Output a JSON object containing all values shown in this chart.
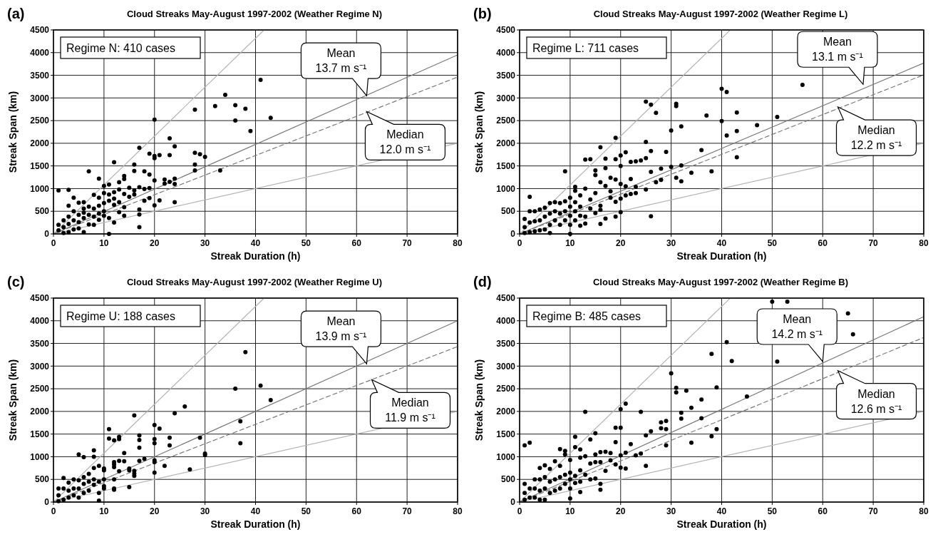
{
  "chart_data": [
    {
      "type": "scatter",
      "title": "Cloud Streaks May-August 1997-2002 (Weather Regime N)",
      "xlabel": "Streak Duration (h)",
      "ylabel": "Streak Span (km)",
      "xlim": [
        0,
        80
      ],
      "ylim": [
        0,
        4500
      ],
      "xticks": [
        0,
        10,
        20,
        30,
        40,
        50,
        60,
        70,
        80
      ],
      "yticks": [
        0,
        500,
        1000,
        1500,
        2000,
        2500,
        3000,
        3500,
        4000,
        4500
      ],
      "grid": true,
      "annotations": [
        "(a)",
        "Regime N: 410 cases",
        {
          "text": "Mean\n13.7 m s⁻¹",
          "x": 62,
          "y": 3050
        },
        {
          "text": "Median\n12.0 m s⁻¹",
          "x": 62,
          "y": 2700
        }
      ],
      "series": [
        {
          "type": "line",
          "color": "#b4b4b4",
          "line_style": "solid",
          "x": [
            0,
            41.7
          ],
          "values": [
            0,
            4500
          ]
        },
        {
          "type": "line",
          "color": "#b4b4b4",
          "line_style": "solid",
          "x": [
            0,
            80
          ],
          "values": [
            0,
            2000
          ]
        },
        {
          "type": "line",
          "color": "#7a7a7a",
          "line_style": "solid",
          "x": [
            0,
            80
          ],
          "values": [
            0,
            3950
          ]
        },
        {
          "type": "line",
          "color": "#7a7a7a",
          "line_style": "dashed",
          "x": [
            0,
            80
          ],
          "values": [
            0,
            3460
          ]
        },
        {
          "color": "#000000",
          "marker": "circle",
          "x": [
            41,
            34,
            28,
            32,
            36,
            38,
            36,
            43,
            39,
            20,
            23,
            24,
            17,
            19,
            20,
            21,
            23,
            20,
            28,
            29,
            30,
            12,
            16,
            16,
            18,
            19,
            28,
            28,
            33,
            7,
            9,
            14,
            13,
            14,
            10,
            11,
            20,
            22,
            23,
            24,
            22,
            24,
            17,
            15,
            16,
            18,
            19,
            12,
            13,
            14,
            15,
            16,
            18,
            19,
            20,
            21,
            24,
            1,
            3,
            4,
            3,
            8,
            9,
            10,
            11,
            12,
            10,
            11,
            13,
            14,
            17,
            17,
            12,
            9,
            8,
            7,
            6,
            5,
            6,
            5,
            4,
            3,
            2,
            1,
            2,
            1,
            3,
            4,
            5,
            6,
            7,
            8,
            9,
            10,
            11,
            12,
            13,
            10,
            7,
            5,
            3,
            2,
            6,
            17,
            11,
            4,
            8,
            9,
            6,
            14
          ],
          "values": [
            3400,
            3070,
            2740,
            2820,
            2840,
            2760,
            2500,
            2560,
            2270,
            2520,
            2110,
            1930,
            1900,
            1770,
            1720,
            1740,
            1740,
            1670,
            1790,
            1760,
            1700,
            1580,
            1530,
            1390,
            1380,
            1310,
            1530,
            1400,
            1400,
            1380,
            1220,
            1280,
            1140,
            1210,
            1060,
            1090,
            1180,
            1200,
            1150,
            1220,
            1110,
            1100,
            1030,
            1020,
            960,
            990,
            1010,
            920,
            980,
            880,
            820,
            870,
            730,
            790,
            630,
            740,
            700,
            960,
            970,
            800,
            620,
            860,
            800,
            900,
            870,
            780,
            680,
            730,
            700,
            590,
            540,
            430,
            640,
            620,
            560,
            600,
            700,
            690,
            560,
            420,
            500,
            380,
            300,
            200,
            150,
            80,
            220,
            300,
            260,
            350,
            420,
            380,
            310,
            400,
            350,
            250,
            480,
            500,
            210,
            120,
            40,
            20,
            40,
            150,
            0,
            100,
            200,
            450,
            470,
            400
          ]
        }
      ]
    },
    {
      "type": "scatter",
      "title": "Cloud Streaks May-August 1997-2002 (Weather Regime L)",
      "xlabel": "Streak Duration (h)",
      "ylabel": "Streak Span (km)",
      "xlim": [
        0,
        80
      ],
      "ylim": [
        0,
        4500
      ],
      "xticks": [
        0,
        10,
        20,
        30,
        40,
        50,
        60,
        70,
        80
      ],
      "yticks": [
        0,
        500,
        1000,
        1500,
        2000,
        2500,
        3000,
        3500,
        4000,
        4500
      ],
      "grid": true,
      "annotations": [
        "(b)",
        "Regime L: 711 cases",
        {
          "text": "Mean\n13.1 m s⁻¹",
          "x": 68,
          "y": 3300
        },
        {
          "text": "Median\n12.2 m s⁻¹",
          "x": 63,
          "y": 2800
        }
      ],
      "series": [
        {
          "type": "line",
          "color": "#b4b4b4",
          "line_style": "solid",
          "x": [
            0,
            41.7
          ],
          "values": [
            0,
            4500
          ]
        },
        {
          "type": "line",
          "color": "#b4b4b4",
          "line_style": "solid",
          "x": [
            0,
            80
          ],
          "values": [
            0,
            2000
          ]
        },
        {
          "type": "line",
          "color": "#7a7a7a",
          "line_style": "solid",
          "x": [
            0,
            80
          ],
          "values": [
            0,
            3770
          ]
        },
        {
          "type": "line",
          "color": "#7a7a7a",
          "line_style": "dashed",
          "x": [
            0,
            80
          ],
          "values": [
            0,
            3510
          ]
        },
        {
          "color": "#000000",
          "marker": "circle",
          "x": [
            56,
            40,
            41,
            25,
            26,
            31,
            31,
            27,
            43,
            37,
            40,
            51,
            47,
            32,
            43,
            30,
            41,
            19,
            25,
            16,
            26,
            21,
            29,
            20,
            36,
            43,
            13,
            14,
            17,
            19,
            25,
            22,
            23,
            24,
            20,
            15,
            17,
            26,
            28,
            30,
            32,
            34,
            38,
            31,
            32,
            27,
            28,
            9,
            15,
            18,
            19,
            20,
            21,
            22,
            23,
            25,
            16,
            11,
            13,
            15,
            17,
            18,
            20,
            21,
            22,
            23,
            18,
            19,
            20,
            16,
            16,
            17,
            19,
            16,
            26,
            15,
            14,
            14,
            13,
            13,
            12,
            12,
            12,
            11,
            11,
            11,
            11,
            10,
            10,
            10,
            10,
            10,
            9,
            9,
            9,
            8,
            8,
            8,
            7,
            7,
            7,
            6,
            6,
            6,
            5,
            5,
            5,
            4,
            4,
            4,
            3,
            3,
            3,
            2,
            2,
            2,
            2,
            1,
            1,
            1,
            6,
            12
          ],
          "values": [
            3290,
            3200,
            3130,
            2920,
            2850,
            2870,
            2820,
            2670,
            2680,
            2610,
            2490,
            2580,
            2400,
            2370,
            2270,
            2280,
            2170,
            2120,
            2030,
            1910,
            1830,
            1800,
            1810,
            1730,
            1850,
            1690,
            1640,
            1650,
            1660,
            1650,
            1670,
            1590,
            1600,
            1620,
            1500,
            1400,
            1450,
            1370,
            1440,
            1480,
            1510,
            1350,
            1380,
            1240,
            1160,
            1140,
            1190,
            1380,
            1300,
            1240,
            1200,
            1100,
            1050,
            1210,
            1040,
            980,
            1140,
            1040,
            1000,
            900,
            1060,
            940,
            780,
            850,
            880,
            900,
            800,
            710,
            480,
            530,
            620,
            340,
            380,
            220,
            390,
            460,
            760,
            560,
            380,
            230,
            850,
            600,
            400,
            950,
            700,
            500,
            300,
            800,
            600,
            400,
            200,
            0,
            720,
            500,
            300,
            680,
            450,
            200,
            700,
            500,
            300,
            680,
            450,
            200,
            580,
            380,
            100,
            540,
            300,
            80,
            500,
            280,
            60,
            820,
            500,
            250,
            40,
            330,
            150,
            20,
            20,
            180
          ]
        }
      ]
    },
    {
      "type": "scatter",
      "title": "Cloud Streaks May-August 1997-2002 (Weather Regime U)",
      "xlabel": "Streak Duration (h)",
      "ylabel": "Streak Span (km)",
      "xlim": [
        0,
        80
      ],
      "ylim": [
        0,
        4500
      ],
      "xticks": [
        0,
        10,
        20,
        30,
        40,
        50,
        60,
        70,
        80
      ],
      "yticks": [
        0,
        500,
        1000,
        1500,
        2000,
        2500,
        3000,
        3500,
        4000,
        4500
      ],
      "grid": true,
      "annotations": [
        "(c)",
        "Regime U: 188 cases",
        {
          "text": "Mean\n13.9 m s⁻¹",
          "x": 62,
          "y": 3050
        },
        {
          "text": "Median\n11.9 m s⁻¹",
          "x": 63,
          "y": 2700
        }
      ],
      "series": [
        {
          "type": "line",
          "color": "#b4b4b4",
          "line_style": "solid",
          "x": [
            0,
            41.7
          ],
          "values": [
            0,
            4500
          ]
        },
        {
          "type": "line",
          "color": "#b4b4b4",
          "line_style": "solid",
          "x": [
            0,
            80
          ],
          "values": [
            0,
            2000
          ]
        },
        {
          "type": "line",
          "color": "#7a7a7a",
          "line_style": "solid",
          "x": [
            0,
            80
          ],
          "values": [
            0,
            4000
          ]
        },
        {
          "type": "line",
          "color": "#7a7a7a",
          "line_style": "dashed",
          "x": [
            0,
            80
          ],
          "values": [
            0,
            3430
          ]
        },
        {
          "color": "#000000",
          "marker": "circle",
          "x": [
            38,
            36,
            41,
            43,
            16,
            26,
            24,
            20,
            11,
            21,
            37,
            11,
            13,
            13,
            17,
            17,
            12,
            20,
            20,
            23,
            23,
            29,
            17,
            8,
            5,
            6,
            8,
            14,
            30,
            30,
            37,
            20,
            13,
            14,
            18,
            17,
            22,
            15,
            15,
            16,
            16,
            16,
            12,
            12,
            12,
            13,
            10,
            10,
            9,
            8,
            7,
            12,
            12,
            12,
            15,
            20,
            20,
            27,
            10,
            10,
            9,
            8,
            8,
            7,
            7,
            6,
            6,
            6,
            5,
            5,
            5,
            4,
            4,
            4,
            3,
            3,
            3,
            2,
            2,
            2,
            1,
            1,
            1,
            9,
            9,
            10
          ],
          "values": [
            3310,
            2500,
            2570,
            2250,
            1910,
            2110,
            1960,
            1700,
            1610,
            1620,
            1780,
            1400,
            1390,
            1440,
            1470,
            1370,
            1360,
            1390,
            1300,
            1420,
            1250,
            1420,
            1200,
            1140,
            1050,
            990,
            1000,
            1080,
            1070,
            1040,
            1300,
            920,
            910,
            900,
            950,
            910,
            800,
            740,
            700,
            690,
            630,
            580,
            880,
            830,
            770,
            680,
            740,
            700,
            800,
            750,
            620,
            500,
            300,
            270,
            330,
            650,
            880,
            720,
            500,
            300,
            450,
            500,
            380,
            450,
            250,
            550,
            400,
            200,
            480,
            300,
            100,
            500,
            300,
            150,
            430,
            250,
            100,
            530,
            300,
            50,
            300,
            150,
            20,
            30,
            200,
            350
          ]
        }
      ]
    },
    {
      "type": "scatter",
      "title": "Cloud Streaks May-August 1997-2002 (Weather Regime B)",
      "xlabel": "Streak Duration (h)",
      "ylabel": "Streak Span (km)",
      "xlim": [
        0,
        80
      ],
      "ylim": [
        0,
        4500
      ],
      "xticks": [
        0,
        10,
        20,
        30,
        40,
        50,
        60,
        70,
        80
      ],
      "yticks": [
        0,
        500,
        1000,
        1500,
        2000,
        2500,
        3000,
        3500,
        4000,
        4500
      ],
      "grid": true,
      "annotations": [
        "(d)",
        "Regime B: 485 cases",
        {
          "text": "Mean\n14.2 m s⁻¹",
          "x": 60,
          "y": 3100
        },
        {
          "text": "Median\n12.6 m s⁻¹",
          "x": 63,
          "y": 2900
        }
      ],
      "series": [
        {
          "type": "line",
          "color": "#b4b4b4",
          "line_style": "solid",
          "x": [
            0,
            41.7
          ],
          "values": [
            0,
            4500
          ]
        },
        {
          "type": "line",
          "color": "#b4b4b4",
          "line_style": "solid",
          "x": [
            0,
            80
          ],
          "values": [
            0,
            2000
          ]
        },
        {
          "type": "line",
          "color": "#7a7a7a",
          "line_style": "solid",
          "x": [
            0,
            80
          ],
          "values": [
            0,
            4090
          ]
        },
        {
          "type": "line",
          "color": "#7a7a7a",
          "line_style": "dashed",
          "x": [
            0,
            80
          ],
          "values": [
            0,
            3630
          ]
        },
        {
          "color": "#000000",
          "marker": "circle",
          "x": [
            50,
            53,
            65,
            66,
            41,
            38,
            42,
            51,
            30,
            31,
            31,
            33,
            39,
            45,
            36,
            21,
            20,
            34,
            24,
            13,
            32,
            32,
            36,
            28,
            29,
            28,
            29,
            19,
            20,
            39,
            26,
            25,
            15,
            14,
            19,
            38,
            34,
            29,
            22,
            1,
            2,
            11,
            11,
            8,
            9,
            12,
            17,
            18,
            21,
            20,
            23,
            24,
            9,
            10,
            15,
            16,
            13,
            15,
            16,
            18,
            19,
            20,
            21,
            25,
            17,
            14,
            12,
            12,
            13,
            14,
            15,
            16,
            16,
            12,
            12,
            10,
            10,
            10,
            10,
            11,
            11,
            9,
            9,
            8,
            8,
            8,
            7,
            7,
            7,
            6,
            6,
            6,
            5,
            5,
            5,
            5,
            4,
            4,
            4,
            4,
            3,
            3,
            3,
            2,
            2,
            1,
            1,
            1
          ],
          "values": [
            4420,
            4420,
            4160,
            3700,
            3530,
            3270,
            3110,
            3100,
            2840,
            2520,
            2420,
            2460,
            2530,
            2330,
            2260,
            2170,
            2050,
            2080,
            1990,
            1990,
            1970,
            1840,
            1850,
            1760,
            1790,
            1630,
            1610,
            1640,
            1640,
            1610,
            1560,
            1470,
            1520,
            1380,
            1320,
            1450,
            1310,
            1250,
            1280,
            1250,
            1310,
            1440,
            1210,
            1170,
            1130,
            1160,
            1110,
            1080,
            1090,
            1030,
            1030,
            1070,
            1050,
            930,
            1050,
            1100,
            1010,
            880,
            880,
            920,
            830,
            760,
            740,
            800,
            690,
            850,
            980,
            700,
            600,
            500,
            520,
            400,
            270,
            450,
            220,
            650,
            500,
            300,
            80,
            580,
            420,
            600,
            400,
            800,
            550,
            300,
            900,
            500,
            250,
            730,
            450,
            200,
            810,
            550,
            300,
            50,
            750,
            500,
            250,
            50,
            500,
            300,
            100,
            300,
            100,
            400,
            200,
            50
          ]
        }
      ]
    }
  ]
}
